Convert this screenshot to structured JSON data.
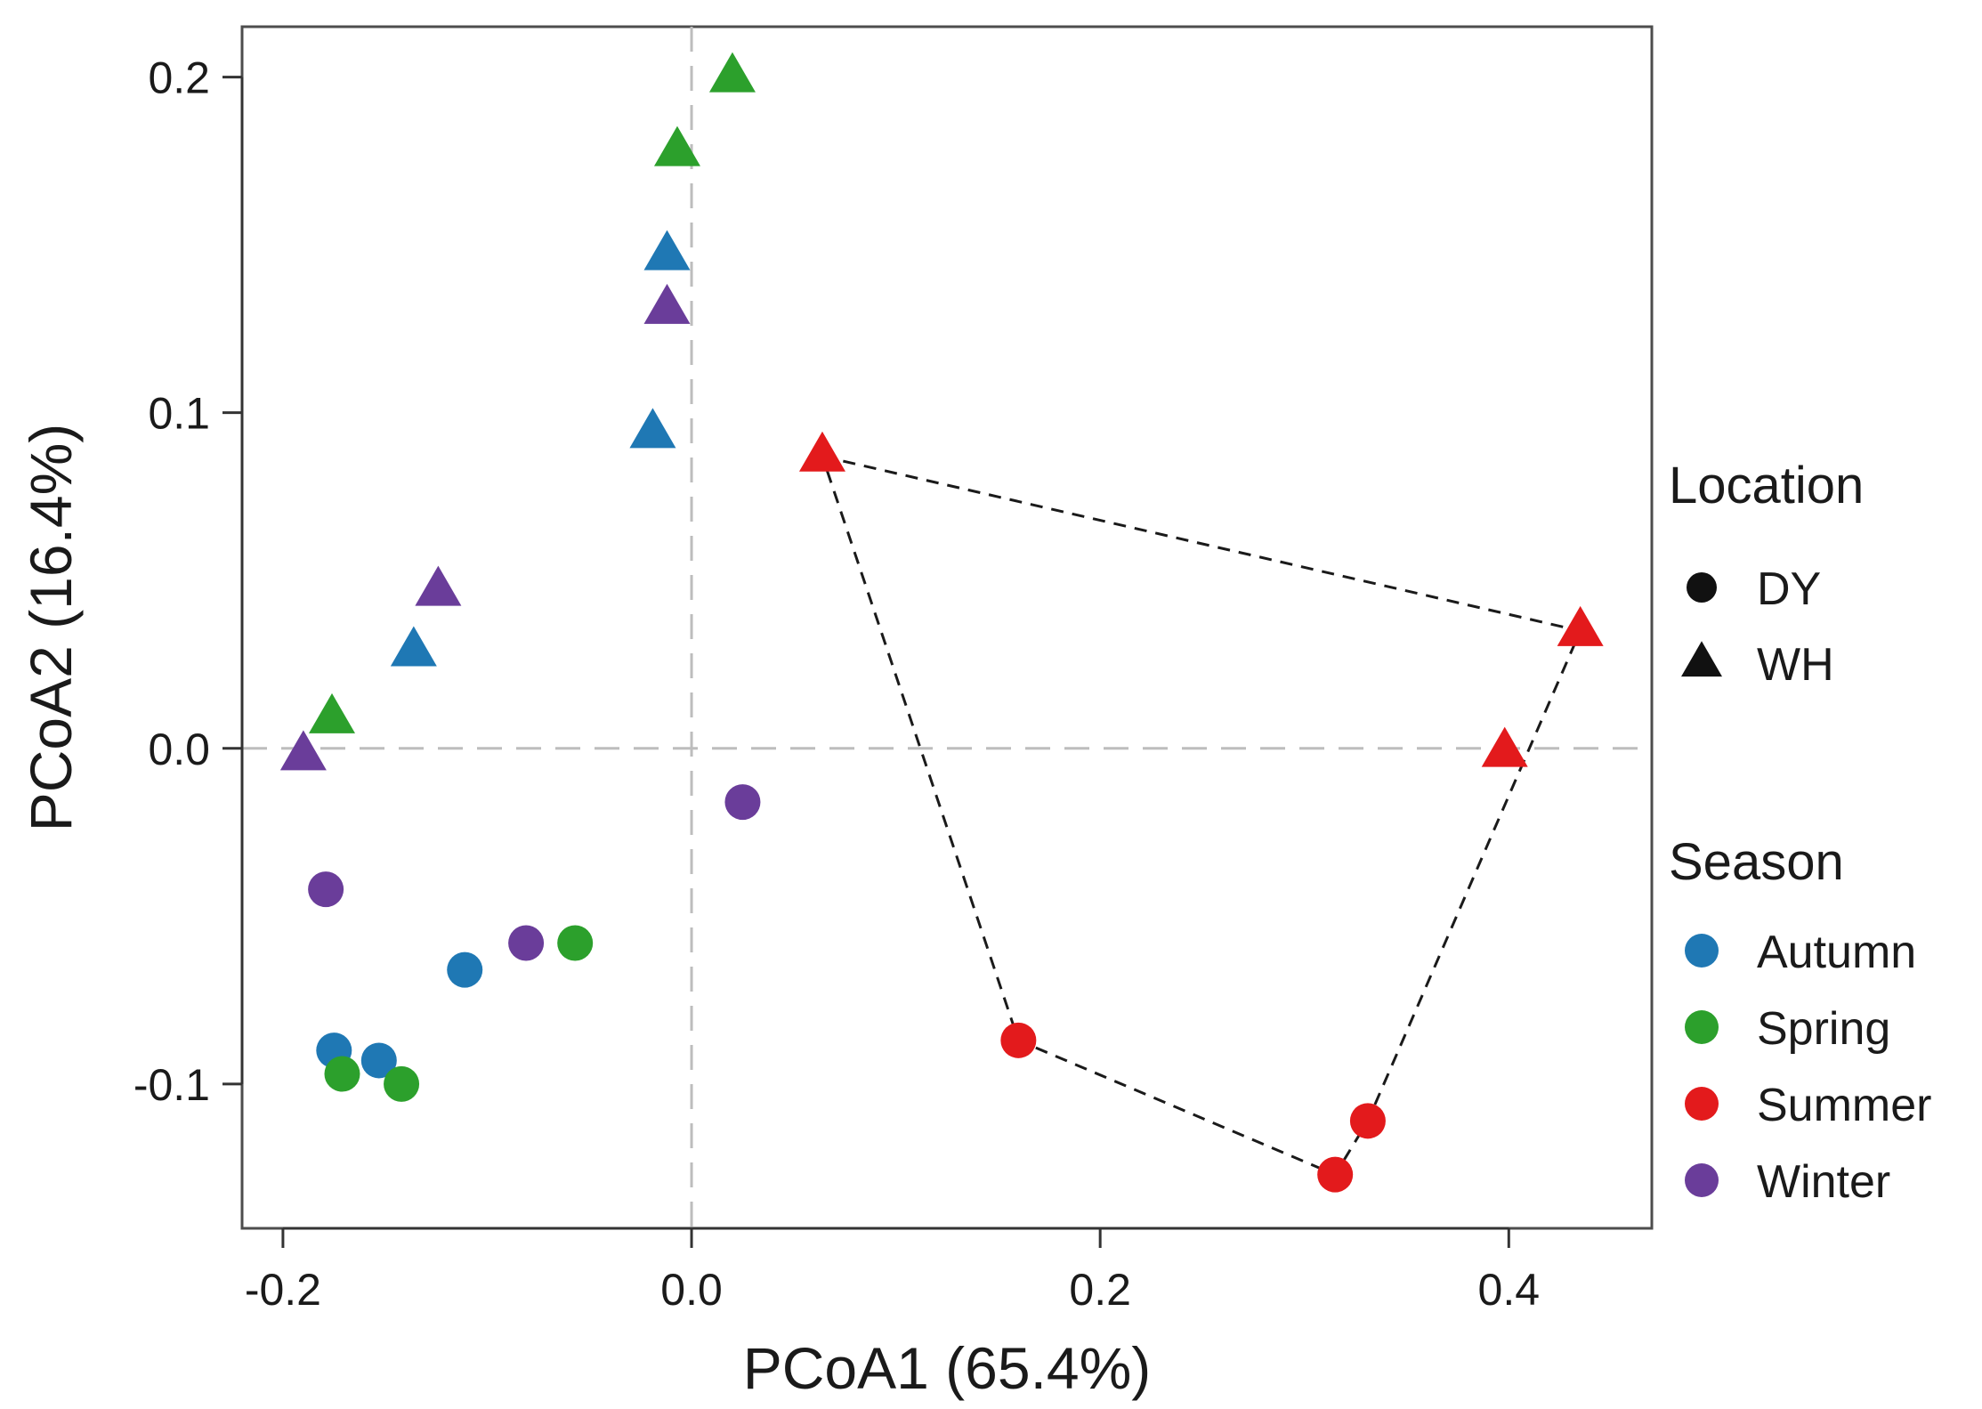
{
  "chart_data": {
    "type": "scatter",
    "xlabel": "PCoA1 (65.4%)",
    "ylabel": "PCoA2 (16.4%)",
    "xlim": [
      -0.22,
      0.47
    ],
    "ylim": [
      -0.143,
      0.215
    ],
    "xticks": [
      -0.2,
      0.0,
      0.2,
      0.4
    ],
    "xtick_labels": [
      "-0.2",
      "0.0",
      "0.2",
      "0.4"
    ],
    "yticks": [
      -0.1,
      0.0,
      0.1,
      0.2
    ],
    "ytick_labels": [
      "-0.1",
      "0.0",
      "0.1",
      "0.2"
    ],
    "reference_lines": {
      "x": 0.0,
      "y": 0.0,
      "style": "dashed",
      "color": "#bdbdbd"
    },
    "colors": {
      "Autumn": "#1f78b4",
      "Spring": "#2ca02c",
      "Summer": "#e31a1c",
      "Winter": "#6a3d9a"
    },
    "legend": {
      "placement": "right",
      "location_title": "Location",
      "location_items": [
        {
          "label": "DY",
          "shape": "circle"
        },
        {
          "label": "WH",
          "shape": "triangle"
        }
      ],
      "season_title": "Season",
      "season_items": [
        {
          "label": "Autumn",
          "color": "#1f78b4"
        },
        {
          "label": "Spring",
          "color": "#2ca02c"
        },
        {
          "label": "Summer",
          "color": "#e31a1c"
        },
        {
          "label": "Winter",
          "color": "#6a3d9a"
        }
      ]
    },
    "points": [
      {
        "x": 0.02,
        "y": 0.2,
        "season": "Spring",
        "location": "WH"
      },
      {
        "x": -0.007,
        "y": 0.178,
        "season": "Spring",
        "location": "WH"
      },
      {
        "x": -0.012,
        "y": 0.147,
        "season": "Autumn",
        "location": "WH"
      },
      {
        "x": -0.012,
        "y": 0.131,
        "season": "Winter",
        "location": "WH"
      },
      {
        "x": -0.019,
        "y": 0.094,
        "season": "Autumn",
        "location": "WH"
      },
      {
        "x": -0.124,
        "y": 0.047,
        "season": "Winter",
        "location": "WH"
      },
      {
        "x": -0.136,
        "y": 0.029,
        "season": "Autumn",
        "location": "WH"
      },
      {
        "x": -0.176,
        "y": 0.009,
        "season": "Spring",
        "location": "WH"
      },
      {
        "x": -0.19,
        "y": -0.002,
        "season": "Winter",
        "location": "WH"
      },
      {
        "x": 0.064,
        "y": 0.087,
        "season": "Summer",
        "location": "WH"
      },
      {
        "x": 0.435,
        "y": 0.035,
        "season": "Summer",
        "location": "WH"
      },
      {
        "x": 0.398,
        "y": -0.001,
        "season": "Summer",
        "location": "WH"
      },
      {
        "x": 0.025,
        "y": -0.016,
        "season": "Winter",
        "location": "DY"
      },
      {
        "x": -0.179,
        "y": -0.042,
        "season": "Winter",
        "location": "DY"
      },
      {
        "x": -0.057,
        "y": -0.058,
        "season": "Spring",
        "location": "DY"
      },
      {
        "x": -0.081,
        "y": -0.058,
        "season": "Winter",
        "location": "DY"
      },
      {
        "x": -0.111,
        "y": -0.066,
        "season": "Autumn",
        "location": "DY"
      },
      {
        "x": -0.175,
        "y": -0.09,
        "season": "Autumn",
        "location": "DY"
      },
      {
        "x": -0.153,
        "y": -0.093,
        "season": "Autumn",
        "location": "DY"
      },
      {
        "x": -0.171,
        "y": -0.097,
        "season": "Spring",
        "location": "DY"
      },
      {
        "x": -0.142,
        "y": -0.1,
        "season": "Spring",
        "location": "DY"
      },
      {
        "x": 0.16,
        "y": -0.087,
        "season": "Summer",
        "location": "DY"
      },
      {
        "x": 0.331,
        "y": -0.111,
        "season": "Summer",
        "location": "DY"
      },
      {
        "x": 0.315,
        "y": -0.127,
        "season": "Summer",
        "location": "DY"
      }
    ],
    "hull": {
      "season": "Summer",
      "style": "dashed",
      "color": "#1a1a1a",
      "vertices": [
        [
          0.064,
          0.087
        ],
        [
          0.435,
          0.035
        ],
        [
          0.331,
          -0.111
        ],
        [
          0.315,
          -0.127
        ],
        [
          0.16,
          -0.087
        ]
      ]
    }
  }
}
